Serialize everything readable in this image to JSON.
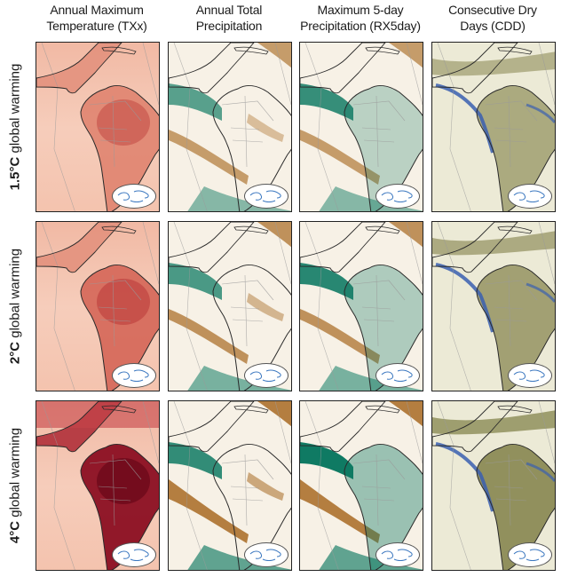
{
  "columns": [
    {
      "line1": "Annual Maximum",
      "line2": "Temperature (TXx)",
      "scheme": "temp"
    },
    {
      "line1": "Annual Total",
      "line2": "Precipitation",
      "scheme": "precip"
    },
    {
      "line1": "Maximum 5-day",
      "line2": "Precipitation (RX5day)",
      "scheme": "rx5"
    },
    {
      "line1": "Consecutive Dry",
      "line2": "Days (CDD)",
      "scheme": "cdd"
    }
  ],
  "rows": [
    {
      "degree": "1.5°C",
      "rest": " global warming",
      "intensity": 0.45
    },
    {
      "degree": "2°C",
      "rest": " global warming",
      "intensity": 0.65
    },
    {
      "degree": "4°C",
      "rest": " global warming",
      "intensity": 1.0
    }
  ],
  "colors": {
    "temp_low": "#f6d7c9",
    "temp_high": "#8b0f22",
    "wet": "#0f7a63",
    "dry": "#a86a22",
    "cdd_olive": "#6b6a2a",
    "cdd_blue": "#3a5fb0",
    "coast": "#2a2a2a",
    "border": "#9a9a9a"
  }
}
